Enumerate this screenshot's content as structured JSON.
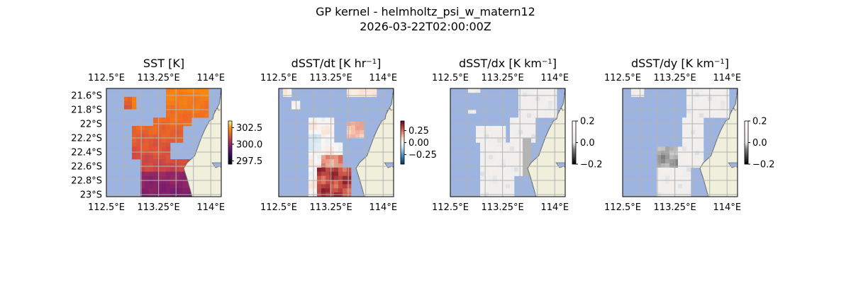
{
  "figure": {
    "title": "GP kernel - helmholtz_psi_w_matern12",
    "subtitle": "2026-03-22T02:00:00Z"
  },
  "colors": {
    "ocean": "#9db4e1",
    "land": "#efefdb",
    "coast": "#6b6b6b",
    "grid": "#b3b3b3"
  },
  "chart_data": [
    {
      "type": "heatmap",
      "title": "SST [K]",
      "title_sup": "",
      "title_end": "",
      "x_ticks": [
        "112.5°E",
        "113.25°E",
        "114°E"
      ],
      "y_ticks": [
        "21.6°S",
        "21.8°S",
        "22°S",
        "22.2°S",
        "22.4°S",
        "22.6°S",
        "22.8°S",
        "23°S"
      ],
      "show_y_ticks": true,
      "lon_range": [
        112.5,
        114.15
      ],
      "lat_range": [
        -23.03,
        -21.5
      ],
      "colormap": "inferno",
      "colorbar_ticks": [
        "302.5",
        "300.0",
        "297.5"
      ],
      "colorbar_tick_values": [
        302.5,
        300.0,
        297.5
      ],
      "colorbar_range": [
        297.0,
        303.5
      ],
      "field": "sst"
    },
    {
      "type": "heatmap",
      "title": "dSST/dt [K hr",
      "title_sup": "−1",
      "title_end": "]",
      "x_ticks": [
        "112.5°E",
        "113.25°E",
        "114°E"
      ],
      "y_ticks": [],
      "show_y_ticks": false,
      "lon_range": [
        112.5,
        114.15
      ],
      "lat_range": [
        -23.03,
        -21.5
      ],
      "colormap": "RdBu_r",
      "colorbar_ticks": [
        "0.25",
        "0.00",
        "−0.25"
      ],
      "colorbar_tick_values": [
        0.25,
        0.0,
        -0.25
      ],
      "colorbar_range": [
        -0.45,
        0.45
      ],
      "field": "dsst_dt"
    },
    {
      "type": "heatmap",
      "title": "dSST/dx [K km",
      "title_sup": "−1",
      "title_end": "]",
      "x_ticks": [
        "112.5°E",
        "113.25°E",
        "114°E"
      ],
      "y_ticks": [],
      "show_y_ticks": false,
      "lon_range": [
        112.5,
        114.15
      ],
      "lat_range": [
        -23.03,
        -21.5
      ],
      "colormap": "gray_white",
      "colorbar_ticks": [
        "0.2",
        "0.0",
        "−0.2"
      ],
      "colorbar_tick_values": [
        0.2,
        0.0,
        -0.2
      ],
      "colorbar_range": [
        -0.2,
        0.2
      ],
      "field": "dsst_dx"
    },
    {
      "type": "heatmap",
      "title": "dSST/dy [K km",
      "title_sup": "−1",
      "title_end": "]",
      "x_ticks": [
        "112.5°E",
        "113.25°E",
        "114°E"
      ],
      "y_ticks": [],
      "show_y_ticks": false,
      "lon_range": [
        112.5,
        114.15
      ],
      "lat_range": [
        -23.03,
        -21.5
      ],
      "colormap": "gray_white",
      "colorbar_ticks": [
        "0.2",
        "0.0",
        "−0.2"
      ],
      "colorbar_tick_values": [
        0.2,
        0.0,
        -0.2
      ],
      "colorbar_range": [
        -0.2,
        0.2
      ],
      "field": "dsst_dy"
    }
  ]
}
